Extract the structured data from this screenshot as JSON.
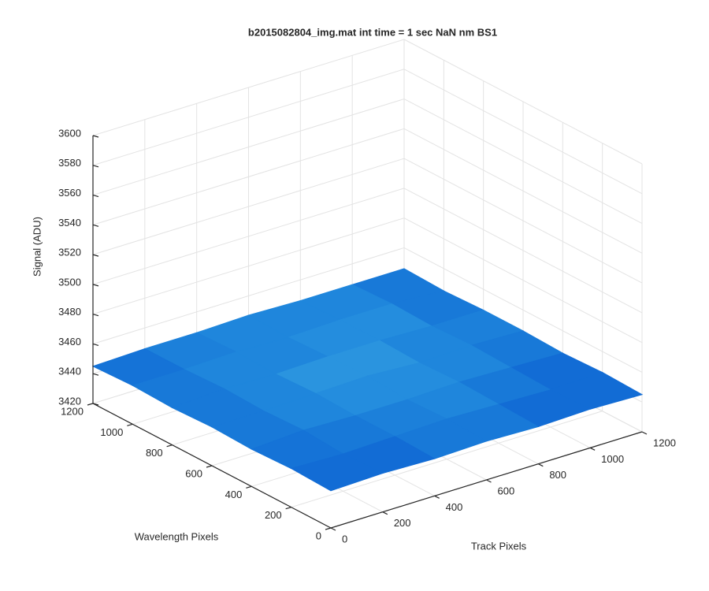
{
  "chart_data": {
    "type": "surface",
    "title": "b2015082804_img.mat int time = 1 sec  NaN nm BS1",
    "xlabel": "Track Pixels",
    "ylabel": "Wavelength Pixels",
    "zlabel": "Signal (ADU)",
    "xlim": [
      0,
      1200
    ],
    "xticks": [
      0,
      200,
      400,
      600,
      800,
      1000,
      1200
    ],
    "ylim": [
      0,
      1200
    ],
    "yticks": [
      0,
      200,
      400,
      600,
      800,
      1000,
      1200
    ],
    "zlim": [
      3420,
      3600
    ],
    "zticks": [
      3420,
      3440,
      3460,
      3480,
      3500,
      3520,
      3540,
      3560,
      3580,
      3600
    ],
    "grid": true,
    "colormap": [
      "#0b5fd1",
      "#1f86dc",
      "#3fb0e6"
    ],
    "x": [
      0,
      200,
      400,
      600,
      800,
      1000,
      1200
    ],
    "y": [
      0,
      200,
      400,
      600,
      800,
      1000,
      1200
    ],
    "z": [
      [
        3445,
        3446,
        3445,
        3446,
        3445,
        3446,
        3445
      ],
      [
        3446,
        3445,
        3446,
        3447,
        3446,
        3445,
        3446
      ],
      [
        3445,
        3447,
        3446,
        3446,
        3447,
        3446,
        3445
      ],
      [
        3446,
        3446,
        3447,
        3448,
        3446,
        3447,
        3446
      ],
      [
        3445,
        3447,
        3446,
        3447,
        3447,
        3446,
        3446
      ],
      [
        3446,
        3446,
        3447,
        3446,
        3447,
        3447,
        3445
      ],
      [
        3445,
        3446,
        3446,
        3447,
        3446,
        3446,
        3446
      ]
    ]
  }
}
